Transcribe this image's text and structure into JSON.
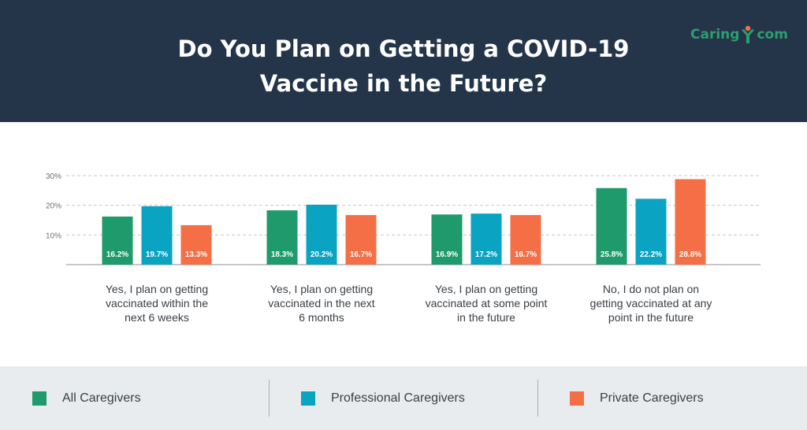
{
  "title": [
    "Do You Plan on Getting a COVID-19",
    "Vaccine in the Future?"
  ],
  "logo": {
    "left": "Caring",
    "right": "com"
  },
  "colors": {
    "header_bg": "#24354a",
    "legend_bg": "#e8ecee",
    "all": "#1e9a6c",
    "professional": "#0aa3c2",
    "private": "#f56f46",
    "grid": "#c8c8c8",
    "logo": "#2d9e6e",
    "logo_mark": "#f56f46"
  },
  "legend": [
    {
      "label": "All Caregivers",
      "color": "#1e9a6c"
    },
    {
      "label": "Professional Caregivers",
      "color": "#0aa3c2"
    },
    {
      "label": "Private Caregivers",
      "color": "#f56f46"
    }
  ],
  "chart_data": {
    "type": "bar",
    "title": "Do You Plan on Getting a COVID-19 Vaccine in the Future?",
    "categories": [
      [
        "Yes, I plan on getting",
        "vaccinated within the",
        "next 6 weeks"
      ],
      [
        "Yes, I plan on getting",
        "vaccinated in the next",
        "6 months"
      ],
      [
        "Yes, I plan on getting",
        "vaccinated at some point",
        "in the future"
      ],
      [
        "No, I do not plan on",
        "getting vaccinated at any",
        "point in the future"
      ]
    ],
    "series": [
      {
        "name": "All Caregivers",
        "color": "#1e9a6c",
        "values": [
          16.2,
          18.3,
          16.9,
          25.8
        ],
        "labels": [
          "16.2%",
          "18.3%",
          "16.9%",
          "25.8%"
        ]
      },
      {
        "name": "Professional Caregivers",
        "color": "#0aa3c2",
        "values": [
          19.7,
          20.2,
          17.2,
          22.2
        ],
        "labels": [
          "19.7%",
          "20.2%",
          "17.2%",
          "22.2%"
        ]
      },
      {
        "name": "Private Caregivers",
        "color": "#f56f46",
        "values": [
          13.3,
          16.7,
          16.7,
          28.8
        ],
        "labels": [
          "13.3%",
          "16.7%",
          "16.7%",
          "28.8%"
        ]
      }
    ],
    "yticks": [
      {
        "value": 10,
        "label": "10%"
      },
      {
        "value": 20,
        "label": "20%"
      },
      {
        "value": 30,
        "label": "30%"
      }
    ],
    "ylim": [
      0,
      30
    ],
    "grid": true,
    "legend_position": "bottom"
  }
}
